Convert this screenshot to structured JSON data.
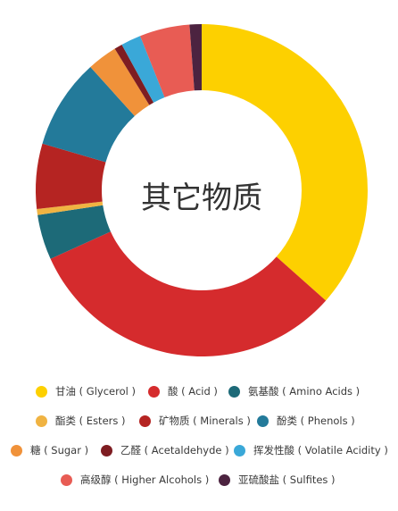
{
  "chart_data": {
    "type": "pie",
    "title": "其它物质",
    "categories": [
      "甘油 ( Glycerol )",
      "酸 ( Acid )",
      "氨基酸 ( Amino Acids )",
      "酯类 ( Esters )",
      "矿物质 ( Minerals )",
      "酚类 ( Phenols )",
      "糖 ( Sugar )",
      "乙醛 ( Acetaldehyde )",
      "挥发性酸 ( Volatile Acidity )",
      "高级醇 ( Higher Alcohols )",
      "亚硫酸盐 ( Sulfites )"
    ],
    "values": [
      37.5,
      32.5,
      4.5,
      0.6,
      6.5,
      9.0,
      3.0,
      0.8,
      2.0,
      5.0,
      1.2
    ],
    "colors": [
      "#fdd000",
      "#d52b2d",
      "#1d6a78",
      "#f0b342",
      "#b52422",
      "#237a9a",
      "#f0923a",
      "#7e1d22",
      "#3aa8d8",
      "#e85c54",
      "#4c2340"
    ],
    "legend_position": "bottom"
  },
  "legend": {
    "items": [
      "甘油 ( Glycerol )",
      "酸 ( Acid )",
      "氨基酸 ( Amino Acids )",
      "酯类 ( Esters )",
      "矿物质 ( Minerals )",
      "酚类 ( Phenols )",
      "糖 ( Sugar )",
      "乙醛 ( Acetaldehyde )",
      "挥发性酸 ( Volatile Acidity )",
      "高级醇 ( Higher Alcohols )",
      "亚硫酸盐 ( Sulfites )"
    ]
  }
}
